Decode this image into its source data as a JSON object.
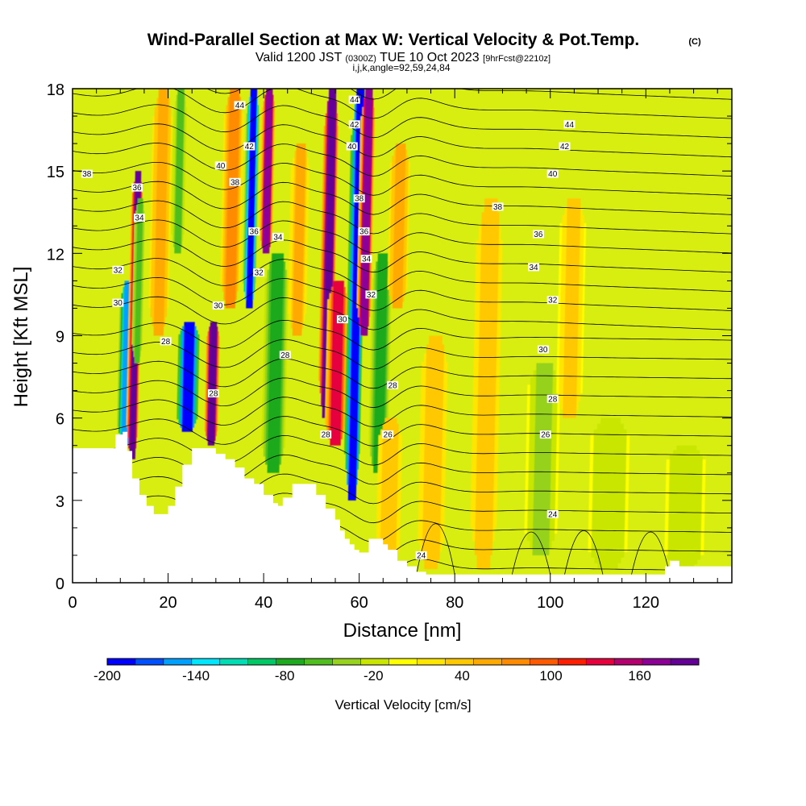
{
  "chart_data": {
    "type": "heatmap",
    "title": "Wind-Parallel Section at Max W: Vertical Velocity & Pot.Temp.",
    "title_mark": "(C)",
    "subtitle": {
      "valid_prefix": "Valid 1200 JST",
      "utc": "(0300Z)",
      "date": "TUE 10 Oct 2023",
      "forecast": "[9hrFcst@2210z]"
    },
    "ijk_line": "i,j,k,angle=92,59,24,84",
    "xlabel": "Distance [nm]",
    "ylabel": "Height [Kft MSL]",
    "xlim": [
      0,
      138
    ],
    "ylim": [
      0,
      18
    ],
    "xticks": [
      "0",
      "20",
      "40",
      "60",
      "80",
      "100",
      "120"
    ],
    "yticks": [
      "0",
      "3",
      "6",
      "9",
      "12",
      "15",
      "18"
    ],
    "colorbar": {
      "title": "Vertical Velocity [cm/s]",
      "range": [
        -200,
        200
      ],
      "tick_labels": [
        "-200",
        "-140",
        "-80",
        "-20",
        "40",
        "100",
        "160"
      ],
      "colors": [
        "#0000ff",
        "#0050ff",
        "#00a0ff",
        "#00e6ff",
        "#00dcb4",
        "#00c864",
        "#1eaa1e",
        "#50be1e",
        "#96d21e",
        "#c8e600",
        "#ffff00",
        "#ffe600",
        "#ffc800",
        "#ffaa00",
        "#ff8c00",
        "#ff5a00",
        "#ff1e00",
        "#e6003c",
        "#b4006e",
        "#8c0096",
        "#640096"
      ]
    },
    "terrain_top_kft": [
      [
        0,
        4.9
      ],
      [
        7,
        4.9
      ],
      [
        9,
        5.4
      ],
      [
        10.5,
        5.5
      ],
      [
        11.5,
        4.8
      ],
      [
        12.5,
        3.8
      ],
      [
        14,
        3.2
      ],
      [
        15.5,
        2.8
      ],
      [
        17,
        2.5
      ],
      [
        18.5,
        2.5
      ],
      [
        20,
        2.8
      ],
      [
        21.5,
        3.5
      ],
      [
        23,
        4.3
      ],
      [
        25,
        4.9
      ],
      [
        28,
        4.9
      ],
      [
        30,
        4.7
      ],
      [
        32,
        4.5
      ],
      [
        34,
        4.2
      ],
      [
        36,
        3.8
      ],
      [
        38,
        3.6
      ],
      [
        40,
        3.2
      ],
      [
        42,
        2.9
      ],
      [
        43,
        2.8
      ],
      [
        44,
        3.1
      ],
      [
        46,
        3.6
      ],
      [
        49,
        3.6
      ],
      [
        51,
        3.2
      ],
      [
        53,
        2.7
      ],
      [
        55,
        2.3
      ],
      [
        56,
        1.9
      ],
      [
        57,
        1.6
      ],
      [
        58,
        1.4
      ],
      [
        59,
        1.2
      ],
      [
        60,
        1.1
      ],
      [
        62,
        1.6
      ],
      [
        63,
        1.6
      ],
      [
        65,
        1.4
      ],
      [
        66,
        1.2
      ],
      [
        68,
        0.8
      ],
      [
        70,
        0.6
      ],
      [
        72,
        0.4
      ],
      [
        74,
        0.3
      ],
      [
        76,
        0.3
      ],
      [
        123,
        0.3
      ],
      [
        124,
        0.6
      ],
      [
        125,
        0.8
      ],
      [
        126,
        0.8
      ],
      [
        127,
        0.6
      ],
      [
        138,
        0.6
      ]
    ],
    "w_cells": [
      {
        "x": 11.0,
        "y0": 5.0,
        "y1": 11.0,
        "w": -160,
        "wid": 1.2
      },
      {
        "x": 12.5,
        "y0": 4.5,
        "y1": 15.0,
        "w": 190,
        "wid": 0.9
      },
      {
        "x": 13.5,
        "y0": 8.0,
        "y1": 14.0,
        "w": -60,
        "wid": 0.8
      },
      {
        "x": 18.0,
        "y0": 9.0,
        "y1": 18.0,
        "w": 60,
        "wid": 1.5
      },
      {
        "x": 22.0,
        "y0": 12.0,
        "y1": 18.0,
        "w": -50,
        "wid": 1.0
      },
      {
        "x": 24.0,
        "y0": 5.5,
        "y1": 9.5,
        "w": -200,
        "wid": 1.6
      },
      {
        "x": 29.0,
        "y0": 5.0,
        "y1": 9.5,
        "w": 200,
        "wid": 1.0
      },
      {
        "x": 33.0,
        "y0": 10.0,
        "y1": 18.0,
        "w": 70,
        "wid": 1.5
      },
      {
        "x": 37.0,
        "y0": 10.0,
        "y1": 18.0,
        "w": -190,
        "wid": 1.0
      },
      {
        "x": 40.5,
        "y0": 12.0,
        "y1": 18.0,
        "w": 170,
        "wid": 1.0
      },
      {
        "x": 42.0,
        "y0": 4.0,
        "y1": 12.0,
        "w": -70,
        "wid": 1.8
      },
      {
        "x": 47.0,
        "y0": 9.0,
        "y1": 16.0,
        "w": 50,
        "wid": 1.4
      },
      {
        "x": 53.0,
        "y0": 6.0,
        "y1": 18.0,
        "w": 200,
        "wid": 1.1
      },
      {
        "x": 55.0,
        "y0": 5.0,
        "y1": 11.0,
        "w": 130,
        "wid": 1.6
      },
      {
        "x": 58.5,
        "y0": 3.0,
        "y1": 18.0,
        "w": -200,
        "wid": 1.2
      },
      {
        "x": 61.0,
        "y0": 9.0,
        "y1": 18.0,
        "w": 170,
        "wid": 1.1
      },
      {
        "x": 64.0,
        "y0": 4.0,
        "y1": 12.0,
        "w": -80,
        "wid": 1.5
      },
      {
        "x": 68.0,
        "y0": 10.0,
        "y1": 16.0,
        "w": 60,
        "wid": 1.5
      },
      {
        "x": 66.0,
        "y0": 0.5,
        "y1": 6.0,
        "w": 40,
        "wid": 1.8
      },
      {
        "x": 75.0,
        "y0": 0.5,
        "y1": 9.0,
        "w": 45,
        "wid": 2.0
      },
      {
        "x": 86.0,
        "y0": 0.5,
        "y1": 14.0,
        "w": 40,
        "wid": 2.0
      },
      {
        "x": 98.0,
        "y0": 1.0,
        "y1": 8.0,
        "w": -30,
        "wid": 2.5
      },
      {
        "x": 104.0,
        "y0": 6.0,
        "y1": 14.0,
        "w": 35,
        "wid": 2.0
      },
      {
        "x": 112.0,
        "y0": 0.5,
        "y1": 6.0,
        "w": -25,
        "wid": 3.0
      },
      {
        "x": 128.0,
        "y0": 0.5,
        "y1": 5.0,
        "w": -25,
        "wid": 3.0
      }
    ],
    "theta_labels": [
      {
        "text": "44",
        "x": 35.0,
        "y": 17.4
      },
      {
        "text": "44",
        "x": 59.0,
        "y": 17.6
      },
      {
        "text": "44",
        "x": 104.0,
        "y": 16.7
      },
      {
        "text": "42",
        "x": 37.0,
        "y": 15.9
      },
      {
        "text": "42",
        "x": 59.0,
        "y": 16.7
      },
      {
        "text": "42",
        "x": 103.0,
        "y": 15.9
      },
      {
        "text": "40",
        "x": 31.0,
        "y": 15.2
      },
      {
        "text": "40",
        "x": 58.5,
        "y": 15.9
      },
      {
        "text": "40",
        "x": 100.5,
        "y": 14.9
      },
      {
        "text": "38",
        "x": 3.0,
        "y": 14.9
      },
      {
        "text": "38",
        "x": 34.0,
        "y": 14.6
      },
      {
        "text": "38",
        "x": 60.0,
        "y": 14.0
      },
      {
        "text": "38",
        "x": 89.0,
        "y": 13.7
      },
      {
        "text": "36",
        "x": 13.5,
        "y": 14.4
      },
      {
        "text": "36",
        "x": 38.0,
        "y": 12.8
      },
      {
        "text": "36",
        "x": 61.0,
        "y": 12.8
      },
      {
        "text": "36",
        "x": 97.5,
        "y": 12.7
      },
      {
        "text": "34",
        "x": 14.0,
        "y": 13.3
      },
      {
        "text": "34",
        "x": 43.0,
        "y": 12.6
      },
      {
        "text": "34",
        "x": 61.5,
        "y": 11.8
      },
      {
        "text": "34",
        "x": 96.5,
        "y": 11.5
      },
      {
        "text": "32",
        "x": 9.5,
        "y": 11.4
      },
      {
        "text": "32",
        "x": 39.0,
        "y": 11.3
      },
      {
        "text": "32",
        "x": 62.5,
        "y": 10.5
      },
      {
        "text": "32",
        "x": 100.5,
        "y": 10.3
      },
      {
        "text": "30",
        "x": 9.5,
        "y": 10.2
      },
      {
        "text": "30",
        "x": 30.5,
        "y": 10.1
      },
      {
        "text": "30",
        "x": 56.5,
        "y": 9.6
      },
      {
        "text": "30",
        "x": 98.5,
        "y": 8.5
      },
      {
        "text": "28",
        "x": 19.5,
        "y": 8.8
      },
      {
        "text": "28",
        "x": 44.5,
        "y": 8.3
      },
      {
        "text": "28",
        "x": 29.5,
        "y": 6.9
      },
      {
        "text": "28",
        "x": 67.0,
        "y": 7.2
      },
      {
        "text": "28",
        "x": 100.5,
        "y": 6.7
      },
      {
        "text": "28",
        "x": 53.0,
        "y": 5.4
      },
      {
        "text": "26",
        "x": 66.0,
        "y": 5.4
      },
      {
        "text": "26",
        "x": 99.0,
        "y": 5.4
      },
      {
        "text": "24",
        "x": 100.5,
        "y": 2.5
      },
      {
        "text": "24",
        "x": 73.0,
        "y": 1.0
      }
    ]
  }
}
